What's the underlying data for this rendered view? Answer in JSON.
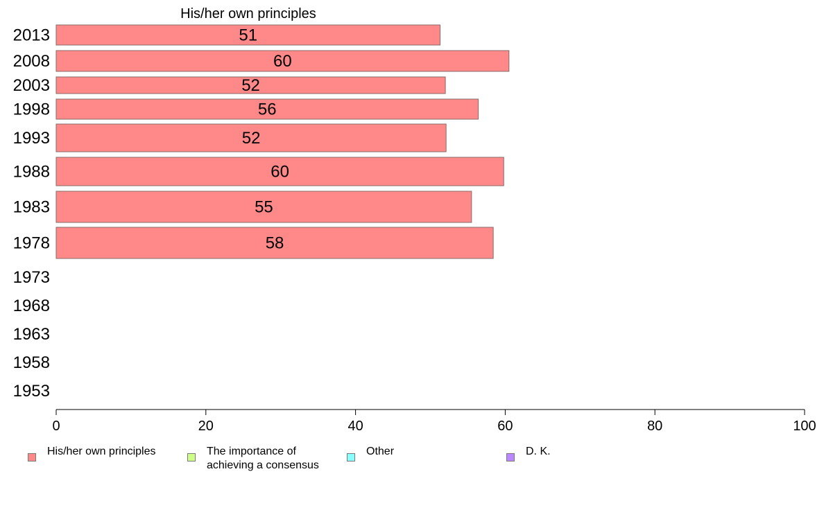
{
  "chart_data": {
    "type": "bar",
    "orientation": "horizontal",
    "title": "His/her own principles",
    "categories": [
      "2013",
      "2008",
      "2003",
      "1998",
      "1993",
      "1988",
      "1983",
      "1978",
      "1973",
      "1968",
      "1963",
      "1958",
      "1953"
    ],
    "series": [
      {
        "name": "His/her own principles",
        "color": "#ff8888",
        "values": [
          51.3,
          60.5,
          52.0,
          56.4,
          52.1,
          59.8,
          55.5,
          58.4,
          null,
          null,
          null,
          null,
          null
        ],
        "labels": [
          "51",
          "60",
          "52",
          "56",
          "52",
          "60",
          "55",
          "58",
          "",
          "",
          "",
          "",
          ""
        ]
      }
    ],
    "xlim": [
      0,
      100
    ],
    "xticks": [
      "0",
      "20",
      "40",
      "60",
      "80",
      "100"
    ],
    "grid": false,
    "legend_position": "bottom-left"
  },
  "legend": [
    {
      "label": "His/her own principles",
      "color": "#ff8888"
    },
    {
      "label": "The importance of\nachieving a consensus",
      "color": "#ccff88"
    },
    {
      "label": "Other",
      "color": "#88ffff"
    },
    {
      "label": "D. K.",
      "color": "#bb88ff"
    }
  ]
}
